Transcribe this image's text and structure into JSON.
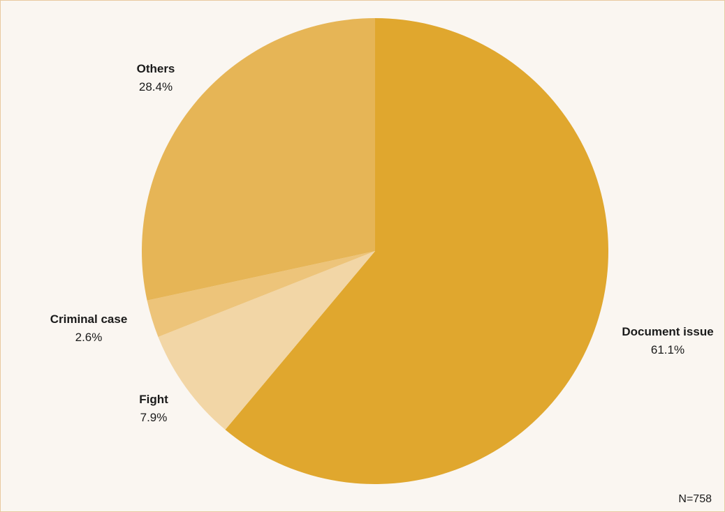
{
  "chart_data": {
    "type": "pie",
    "start_angle_deg": 0,
    "direction": "clockwise",
    "slices": [
      {
        "label": "Document issue",
        "value": 61.1,
        "value_label": "61.1%",
        "color": "#e0a72e"
      },
      {
        "label": "Fight",
        "value": 7.9,
        "value_label": "7.9%",
        "color": "#f2d6a6"
      },
      {
        "label": "Criminal case",
        "value": 2.6,
        "value_label": "2.6%",
        "color": "#edc47a"
      },
      {
        "label": "Others",
        "value": 28.4,
        "value_label": "28.4%",
        "color": "#e6b556"
      }
    ],
    "note": "N=758"
  }
}
